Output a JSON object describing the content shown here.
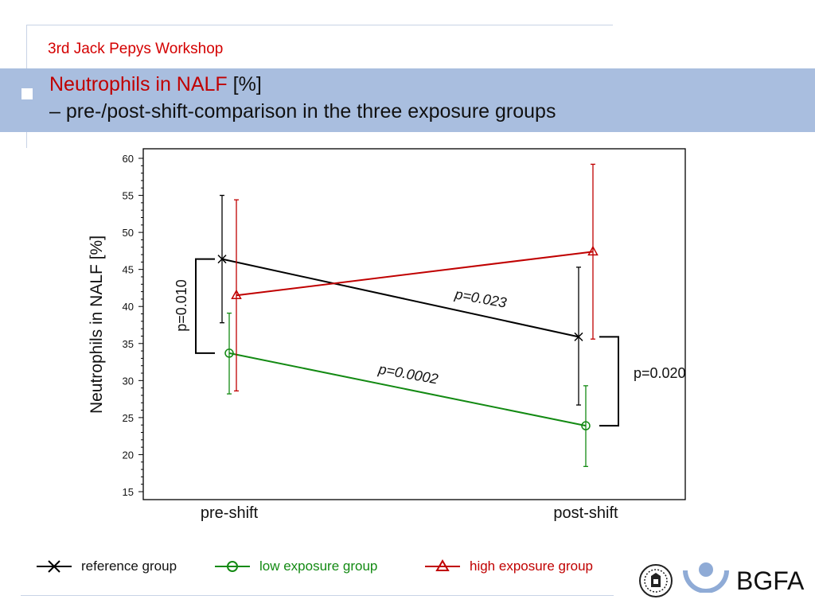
{
  "header": {
    "workshop": "3rd Jack Pepys Workshop",
    "title_main": "Neutrophils in NALF",
    "title_unit": "[%]",
    "subtitle": "– pre-/post-shift-comparison in the three exposure groups"
  },
  "chart_data": {
    "type": "line",
    "categories": [
      "pre-shift",
      "post-shift"
    ],
    "ylabel": "Neutrophils in NALF [%]",
    "ylim": [
      15,
      60
    ],
    "yticks": [
      "15",
      "20",
      "25",
      "30",
      "35",
      "40",
      "45",
      "50",
      "55",
      "60"
    ],
    "grid": false,
    "series": [
      {
        "name": "reference group",
        "color": "#000000",
        "marker": "cross",
        "values": [
          46.4,
          35.9
        ],
        "err_low": [
          37.8,
          26.7
        ],
        "err_high": [
          55.0,
          45.3
        ]
      },
      {
        "name": "low exposure group",
        "color": "#138a13",
        "marker": "circle",
        "values": [
          33.7,
          23.9
        ],
        "err_low": [
          28.2,
          18.4
        ],
        "err_high": [
          39.1,
          29.3
        ]
      },
      {
        "name": "high exposure group",
        "color": "#c00000",
        "marker": "triangle",
        "values": [
          41.5,
          47.4
        ],
        "err_low": [
          28.6,
          35.6
        ],
        "err_high": [
          54.4,
          59.2
        ]
      }
    ],
    "annotations": {
      "pre_bracket": "p=0.010",
      "post_bracket": "p=0.020",
      "reference_change": "p=0.023",
      "low_change": "p=0.0002"
    }
  },
  "brand": {
    "name": "BGFA"
  }
}
